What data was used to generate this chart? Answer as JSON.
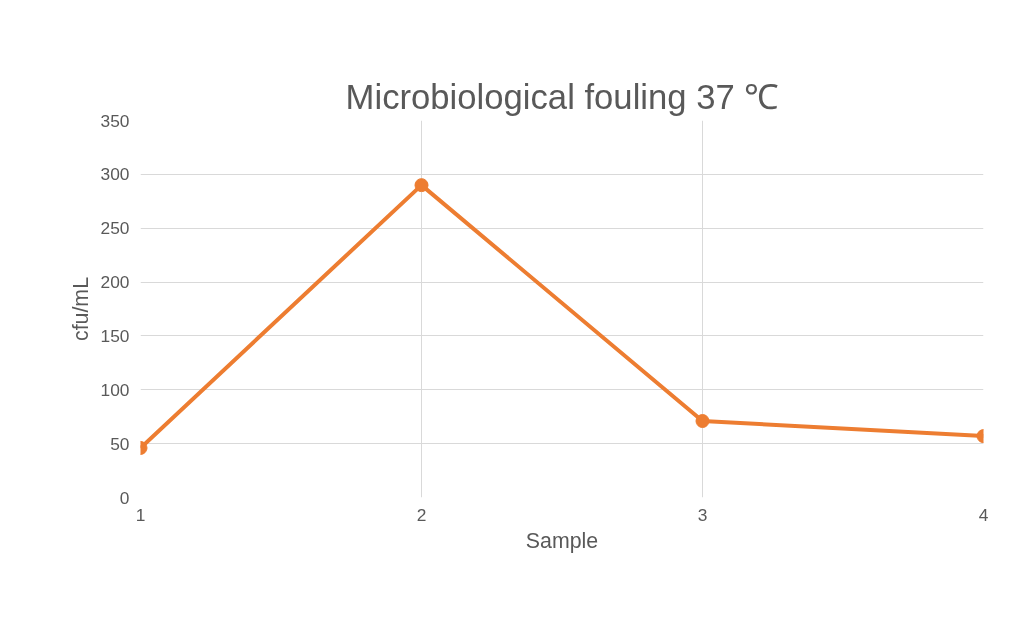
{
  "chart_data": {
    "type": "line",
    "title": "Microbiological fouling 37 ℃",
    "xlabel": "Sample",
    "ylabel": "cfu/mL",
    "x": [
      1,
      2,
      3,
      4
    ],
    "series": [
      {
        "color": "#ed7d31",
        "values": [
          46,
          290,
          71,
          57
        ]
      }
    ],
    "xlim": [
      1,
      4
    ],
    "xticks": [
      1,
      2,
      3,
      4
    ],
    "ylim": [
      0,
      350
    ],
    "yticks": [
      0,
      50,
      100,
      150,
      200,
      250,
      300,
      350
    ],
    "grid": true,
    "marker": "circle",
    "line_style": "solid"
  }
}
